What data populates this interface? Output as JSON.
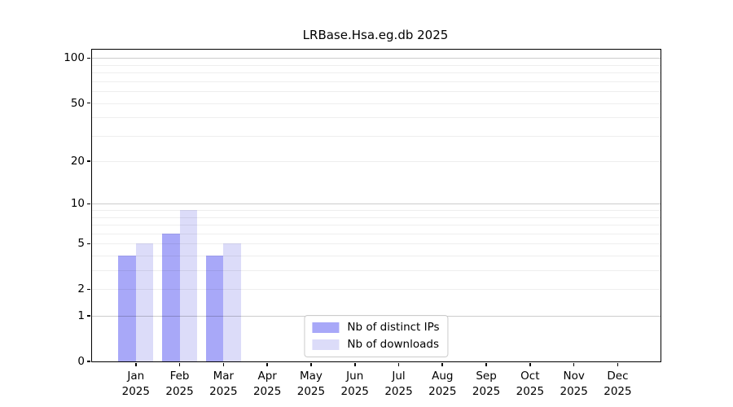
{
  "chart_data": {
    "type": "bar",
    "title": "LRBase.Hsa.eg.db 2025",
    "categories": [
      "Jan",
      "Feb",
      "Mar",
      "Apr",
      "May",
      "Jun",
      "Jul",
      "Aug",
      "Sep",
      "Oct",
      "Nov",
      "Dec"
    ],
    "x_year_label": "2025",
    "series": [
      {
        "name": "Nb of distinct IPs",
        "color": "#a8a8f8",
        "values": [
          4,
          6,
          4,
          0,
          0,
          0,
          0,
          0,
          0,
          0,
          0,
          0
        ]
      },
      {
        "name": "Nb of downloads",
        "color": "#dcdcf9",
        "values": [
          5,
          9,
          5,
          0,
          0,
          0,
          0,
          0,
          0,
          0,
          0,
          0
        ]
      }
    ],
    "yscale": "log1p",
    "ylim": [
      0,
      114
    ],
    "yticks": [
      0,
      1,
      2,
      5,
      10,
      20,
      50,
      100
    ],
    "ytick_labels": [
      "0",
      "1",
      "2",
      "5",
      "10",
      "20",
      "50",
      "100"
    ],
    "grid_major": [
      1,
      10,
      100
    ],
    "grid_minor": [
      2,
      3,
      4,
      5,
      6,
      7,
      8,
      9,
      20,
      30,
      40,
      50,
      60,
      70,
      80,
      90
    ],
    "grid": "on",
    "legend_position": "lower center"
  },
  "colors": {
    "distinct_ips": "#a8a8f8",
    "downloads": "#dcdcf9",
    "grid_major": "#c9c9c9",
    "grid_minor": "#eeeeee",
    "spine": "#000000",
    "legend_border": "#cccccc",
    "background": "#ffffff"
  }
}
